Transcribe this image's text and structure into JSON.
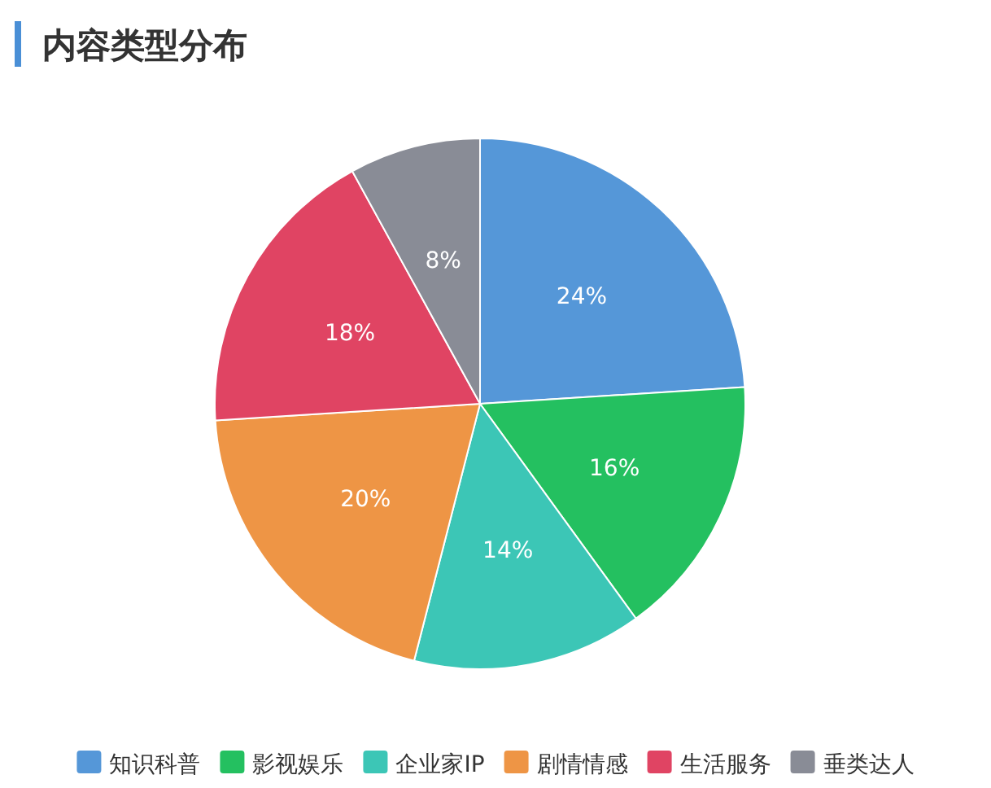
{
  "chart_data": {
    "type": "pie",
    "title": "内容类型分布",
    "categories": [
      "知识科普",
      "影视娱乐",
      "企业家IP",
      "剧情情感",
      "生活服务",
      "垂类达人"
    ],
    "values": [
      24,
      16,
      14,
      20,
      18,
      8
    ],
    "colors": [
      "#5597d8",
      "#24c060",
      "#3cc6b6",
      "#ee9545",
      "#e04463",
      "#898c96"
    ],
    "value_labels": [
      "24%",
      "16%",
      "14%",
      "20%",
      "18%",
      "8%"
    ],
    "legend": "bottom"
  }
}
